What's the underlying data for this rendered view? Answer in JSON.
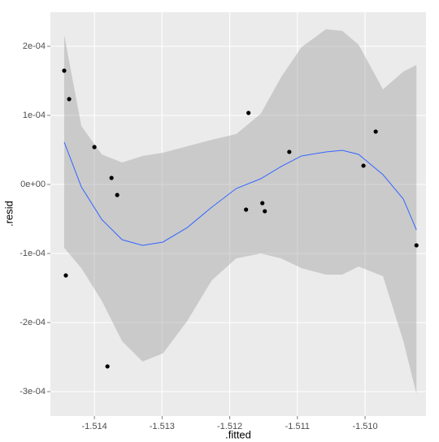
{
  "chart_data": {
    "type": "scatter",
    "x_label": ".fitted",
    "y_label": ".resid",
    "xlim": [
      -1.51465,
      -1.5091
    ],
    "ylim": [
      -0.0003353,
      0.0002494
    ],
    "xticks": [
      -1.514,
      -1.513,
      -1.512,
      -1.511,
      {
        "value": -1.51,
        "label": "-1.510"
      }
    ],
    "yticks": [
      {
        "value": -0.0003,
        "label": "-3e-04"
      },
      {
        "value": -0.0002,
        "label": "-2e-04"
      },
      {
        "value": -0.0001,
        "label": "-1e-04"
      },
      {
        "value": 0,
        "label": "0e+00"
      },
      {
        "value": 0.0001,
        "label": "1e-04"
      },
      {
        "value": 0.0002,
        "label": "2e-04"
      }
    ],
    "grid": true,
    "color": "#000000",
    "x": [
      -1.514446,
      -1.514373,
      -1.514422,
      -1.514,
      -1.513747,
      -1.513663,
      -1.513807,
      -1.511723,
      -1.511759,
      -1.511518,
      -1.511482,
      -1.51112,
      -1.510024,
      -1.509843,
      -1.509241
    ],
    "values": [
      0.0001647,
      0.0001235,
      -0.0001318,
      5.41e-05,
      9.4e-06,
      -1.53e-05,
      -0.0002635,
      0.0001035,
      -3.65e-05,
      -2.71e-05,
      -3.88e-05,
      4.71e-05,
      2.71e-05,
      7.65e-05,
      -8.82e-05
    ],
    "smooth": {
      "color": "#3366ff",
      "band_color": "#999999",
      "x": [
        -1.514446,
        -1.514193,
        -1.513892,
        -1.51359,
        -1.513289,
        -1.512988,
        -1.512627,
        -1.512265,
        -1.511904,
        -1.511542,
        -1.511241,
        -1.51094,
        -1.510578,
        -1.510337,
        -1.510096,
        -1.509735,
        -1.509434,
        -1.509241
      ],
      "values": [
        6.12e-05,
        -3.5e-06,
        -5.06e-05,
        -8e-05,
        -8.82e-05,
        -8.35e-05,
        -6.24e-05,
        -3.29e-05,
        -5.9e-06,
        8.2e-06,
        2.59e-05,
        4.12e-05,
        4.71e-05,
        4.94e-05,
        4.35e-05,
        1.41e-05,
        -2.12e-05,
        -6.59e-05
      ],
      "upper": [
        0.0002165,
        8.47e-05,
        4.35e-05,
        3.18e-05,
        4.12e-05,
        4.59e-05,
        5.53e-05,
        6.47e-05,
        7.29e-05,
        0.0001024,
        0.0001553,
        0.0001988,
        0.0002247,
        0.0002224,
        0.0002024,
        0.0001376,
        0.0001635,
        0.0001729
      ],
      "lower": [
        -9.18e-05,
        -0.0001212,
        -0.0001682,
        -0.0002271,
        -0.0002565,
        -0.0002447,
        -0.0001976,
        -0.0001388,
        -0.0001071,
        -0.0001,
        -0.0001071,
        -0.0001212,
        -0.0001306,
        -0.0001306,
        -0.0001188,
        -0.0001329,
        -0.0002271,
        -0.0003035
      ]
    }
  }
}
